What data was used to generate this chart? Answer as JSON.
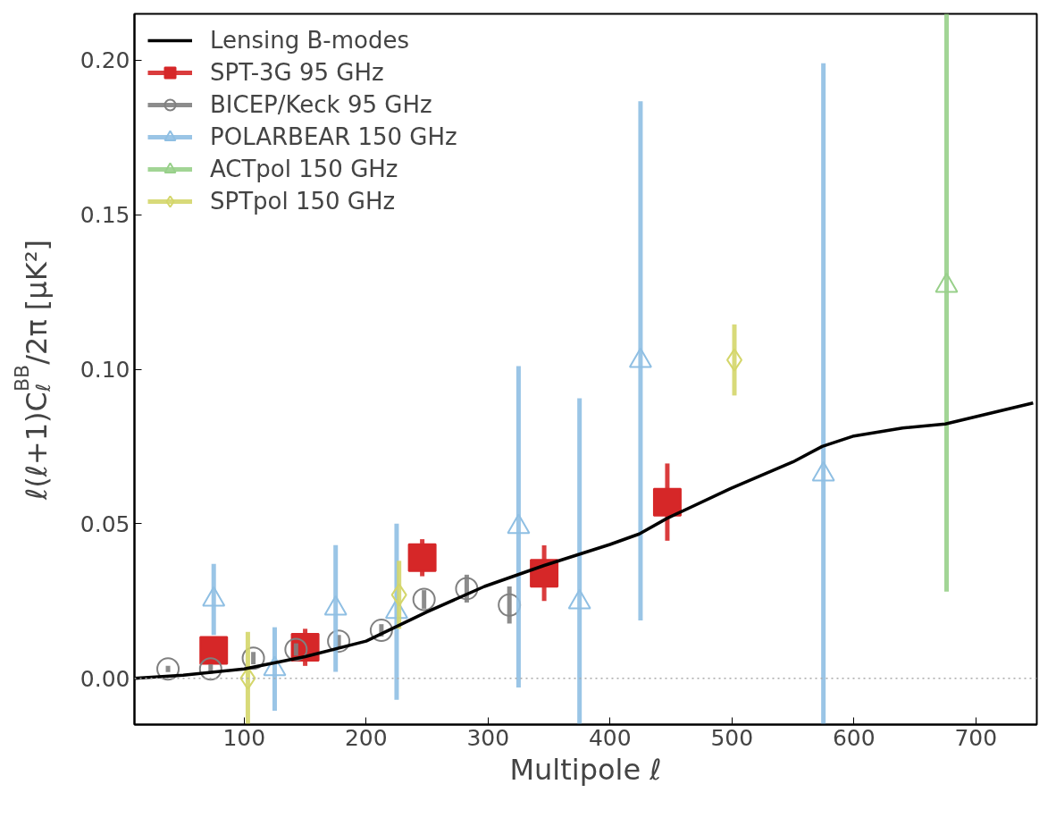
{
  "chart_data": {
    "type": "scatter",
    "xlabel": "Multipole ℓ",
    "ylabel": "ℓ(ℓ+1)C$_{ℓ}$$^{BB}$/2π [μK²]",
    "xlim": [
      10,
      750
    ],
    "ylim": [
      -0.015,
      0.215
    ],
    "xticks": [
      100,
      200,
      300,
      400,
      500,
      600,
      700
    ],
    "yticks": [
      {
        "value": 0,
        "label": "0.00"
      },
      {
        "value": 0.05,
        "label": "0.05"
      },
      {
        "value": 0.1,
        "label": "0.10"
      },
      {
        "value": 0.15,
        "label": "0.15"
      },
      {
        "value": 0.2,
        "label": "0.20"
      }
    ],
    "grid": false,
    "legend": "top left",
    "ref_lines": [
      {
        "axis": "y",
        "value": 0,
        "color": "#aaaaaa",
        "line_style": "dotted"
      }
    ],
    "series": [
      {
        "name": "Lensing B-modes",
        "type": "line",
        "color": "#000000",
        "marker": "none",
        "line_style": "solid",
        "x": [
          10,
          50,
          100,
          150,
          200,
          250,
          297,
          346,
          400,
          424,
          447,
          499,
          550,
          574,
          600,
          640,
          675,
          747
        ],
        "values": [
          0.0,
          0.001,
          0.003,
          0.007,
          0.012,
          0.0215,
          0.0297,
          0.0365,
          0.0433,
          0.0467,
          0.0518,
          0.0614,
          0.07,
          0.075,
          0.0784,
          0.081,
          0.0823,
          0.0891
        ]
      },
      {
        "name": "SPT-3G 95 GHz",
        "color": "#d62728",
        "marker": "square",
        "x": [
          75,
          150,
          246,
          346,
          447
        ],
        "values": [
          0.009,
          0.01,
          0.039,
          0.034,
          0.057
        ],
        "errors": [
          0.0045,
          0.006,
          0.006,
          0.009,
          0.0125
        ]
      },
      {
        "name": "BICEP/Keck 95 GHz",
        "color": "#808080",
        "marker": "circle",
        "x": [
          37.5,
          72.5,
          107.5,
          142.5,
          177.5,
          212.5,
          247.5,
          282.5,
          317.5
        ],
        "values": [
          0.003,
          0.003,
          0.0065,
          0.0093,
          0.012,
          0.0155,
          0.0255,
          0.029,
          0.0237
        ],
        "errors": [
          0.001,
          0.0015,
          0.002,
          0.002,
          0.002,
          0.002,
          0.003,
          0.0045,
          0.006
        ]
      },
      {
        "name": "POLARBEAR 150 GHz",
        "color": "#8fbfe3",
        "marker": "triangle",
        "x": [
          75,
          125,
          175,
          225,
          325,
          375,
          425,
          575
        ],
        "values": [
          0.0255,
          0.003,
          0.0226,
          0.0215,
          0.049,
          0.0246,
          0.1027,
          0.066
        ],
        "errors": [
          0.0115,
          0.0135,
          0.0205,
          0.0285,
          0.052,
          0.066,
          0.084,
          0.133
        ]
      },
      {
        "name": "ACTpol 150 GHz",
        "color": "#98d08a",
        "marker": "triangle",
        "x": [
          676
        ],
        "values": [
          0.127
        ],
        "errors": [
          [
            0.028,
            0.215
          ]
        ]
      },
      {
        "name": "SPTpol 150 GHz",
        "color": "#d4d66a",
        "marker": "diamond",
        "x": [
          103,
          227,
          502
        ],
        "values": [
          0.0,
          0.027,
          0.103
        ],
        "errors": [
          0.015,
          0.011,
          0.0115
        ]
      }
    ]
  }
}
